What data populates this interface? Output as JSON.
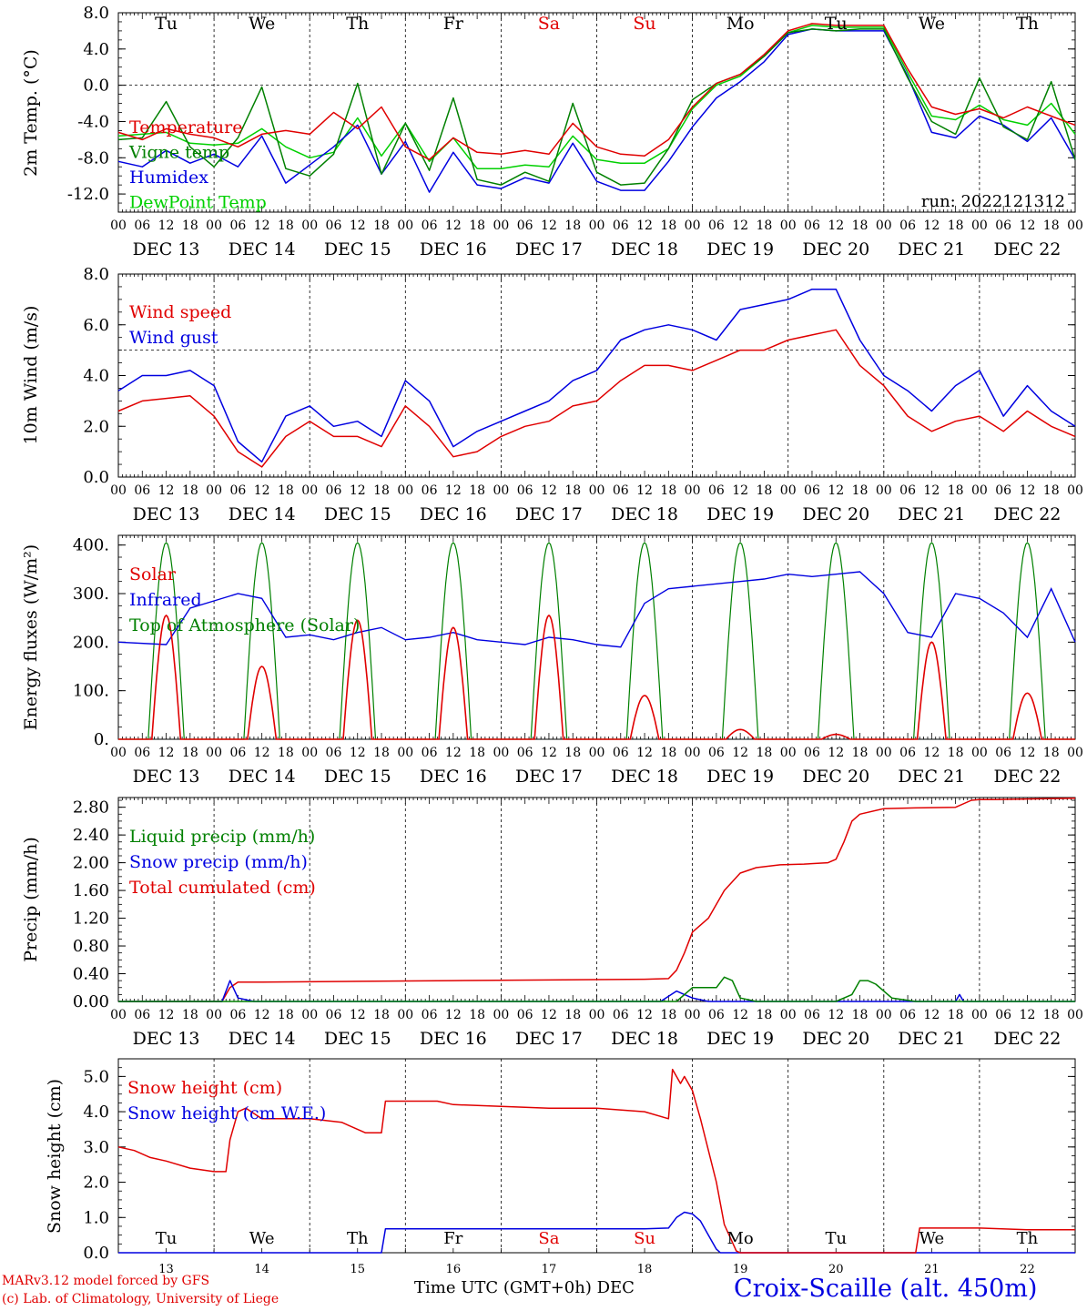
{
  "footer": {
    "model_line": "MARv3.12 model forced by GFS",
    "credit_line": "(c) Lab. of Climatology, University of Liege",
    "xlabel": "Time UTC (GMT+0h) DEC",
    "station": "Croix-Scaille (alt. 450m)",
    "day_numbers": [
      "13",
      "14",
      "15",
      "16",
      "17",
      "18",
      "19",
      "20",
      "21",
      "22"
    ]
  },
  "run_label": "run: 2022121312",
  "hour_ticks": [
    "00",
    "06",
    "12",
    "18"
  ],
  "hour_end": "00",
  "dates": [
    "DEC 13",
    "DEC 14",
    "DEC 15",
    "DEC 16",
    "DEC 17",
    "DEC 18",
    "DEC 19",
    "DEC 20",
    "DEC 21",
    "DEC 22"
  ],
  "weekdays": [
    {
      "label": "Tu",
      "color": "#000000"
    },
    {
      "label": "We",
      "color": "#000000"
    },
    {
      "label": "Th",
      "color": "#000000"
    },
    {
      "label": "Fr",
      "color": "#000000"
    },
    {
      "label": "Sa",
      "color": "#e00000"
    },
    {
      "label": "Su",
      "color": "#e00000"
    },
    {
      "label": "Mo",
      "color": "#000000"
    },
    {
      "label": "Tu",
      "color": "#000000"
    },
    {
      "label": "We",
      "color": "#000000"
    },
    {
      "label": "Th",
      "color": "#000000"
    }
  ],
  "colors": {
    "red": "#e00000",
    "green": "#008000",
    "blue": "#0000e0",
    "light_green": "#00d000"
  },
  "chart_data": [
    {
      "type": "line",
      "ylabel": "2m Temp. (°C)",
      "ylim": [
        -14,
        8
      ],
      "yticks": [
        8.0,
        4.0,
        0.0,
        -4.0,
        -8.0,
        -12.0
      ],
      "ytick_labels": [
        "8.0",
        "4.0",
        "0.0",
        "-4.0",
        "-8.0",
        "-12.0"
      ],
      "ref_line": 0,
      "x_unit": "hours since DEC 13 00 UTC",
      "x": [
        0,
        6,
        12,
        18,
        24,
        30,
        36,
        42,
        48,
        54,
        60,
        66,
        72,
        78,
        84,
        90,
        96,
        102,
        108,
        114,
        120,
        126,
        132,
        138,
        144,
        150,
        156,
        162,
        168,
        174,
        180,
        186,
        192,
        198,
        204,
        210,
        216,
        222,
        228,
        234,
        240
      ],
      "series": [
        {
          "name": "Temperature",
          "color": "#e00000",
          "values": [
            -5.2,
            -6.0,
            -4.8,
            -5.4,
            -5.8,
            -6.8,
            -5.4,
            -5.0,
            -5.4,
            -3.0,
            -4.8,
            -2.4,
            -6.8,
            -8.2,
            -5.8,
            -7.4,
            -7.6,
            -7.2,
            -7.6,
            -4.2,
            -6.8,
            -7.6,
            -7.8,
            -6.0,
            -2.4,
            0.2,
            1.2,
            3.4,
            6.0,
            6.8,
            6.6,
            6.6,
            6.6,
            1.8,
            -2.4,
            -3.2,
            -2.6,
            -3.6,
            -2.4,
            -3.4,
            -4.4
          ]
        },
        {
          "name": "Vigne temp",
          "color": "#008000",
          "values": [
            -6.0,
            -5.8,
            -1.8,
            -6.8,
            -9.0,
            -5.8,
            -0.2,
            -9.2,
            -10.0,
            -7.6,
            0.2,
            -9.8,
            -4.2,
            -9.4,
            -1.4,
            -10.4,
            -11.0,
            -9.6,
            -10.6,
            -2.0,
            -9.6,
            -11.0,
            -10.8,
            -7.0,
            -1.6,
            0.2,
            1.2,
            3.2,
            5.8,
            6.2,
            6.0,
            6.2,
            6.2,
            0.8,
            -4.0,
            -5.4,
            0.8,
            -4.6,
            -6.0,
            0.4,
            -8.2
          ]
        },
        {
          "name": "Humidex",
          "color": "#0000e0",
          "values": [
            -8.4,
            -9.0,
            -7.2,
            -8.6,
            -7.6,
            -9.0,
            -5.6,
            -10.8,
            -8.8,
            -6.8,
            -4.4,
            -9.8,
            -6.2,
            -11.8,
            -7.4,
            -11.0,
            -11.4,
            -10.2,
            -10.8,
            -6.4,
            -10.6,
            -11.6,
            -11.6,
            -8.4,
            -4.6,
            -1.4,
            0.4,
            2.6,
            5.6,
            6.2,
            6.0,
            6.0,
            6.0,
            1.0,
            -5.2,
            -5.8,
            -3.4,
            -4.4,
            -6.2,
            -3.6,
            -8.2
          ]
        },
        {
          "name": "DewPoint Temp",
          "color": "#00d000",
          "values": [
            -5.6,
            -5.4,
            -5.2,
            -6.4,
            -6.6,
            -6.4,
            -4.8,
            -6.8,
            -8.0,
            -7.4,
            -3.6,
            -7.8,
            -4.2,
            -8.4,
            -5.8,
            -9.2,
            -9.2,
            -8.8,
            -9.0,
            -5.6,
            -8.2,
            -8.6,
            -8.6,
            -7.0,
            -2.6,
            0.0,
            1.0,
            3.2,
            5.8,
            6.6,
            6.4,
            6.4,
            6.4,
            1.4,
            -3.4,
            -3.8,
            -2.2,
            -3.8,
            -4.4,
            -2.0,
            -5.4
          ]
        }
      ]
    },
    {
      "type": "line",
      "ylabel": "10m Wind (m/s)",
      "ylim": [
        0,
        8
      ],
      "yticks": [
        0.0,
        2.0,
        4.0,
        6.0,
        8.0
      ],
      "ytick_labels": [
        "0.0",
        "2.0",
        "4.0",
        "6.0",
        "8.0"
      ],
      "ref_line": 5.0,
      "x_unit": "hours since DEC 13 00 UTC",
      "x": [
        0,
        6,
        12,
        18,
        24,
        30,
        36,
        42,
        48,
        54,
        60,
        66,
        72,
        78,
        84,
        90,
        96,
        102,
        108,
        114,
        120,
        126,
        132,
        138,
        144,
        150,
        156,
        162,
        168,
        174,
        180,
        186,
        192,
        198,
        204,
        210,
        216,
        222,
        228,
        234,
        240
      ],
      "series": [
        {
          "name": "Wind speed",
          "color": "#e00000",
          "values": [
            2.6,
            3.0,
            3.1,
            3.2,
            2.4,
            1.0,
            0.4,
            1.6,
            2.2,
            1.6,
            1.6,
            1.2,
            2.8,
            2.0,
            0.8,
            1.0,
            1.6,
            2.0,
            2.2,
            2.8,
            3.0,
            3.8,
            4.4,
            4.4,
            4.2,
            4.6,
            5.0,
            5.0,
            5.4,
            5.6,
            5.8,
            4.4,
            3.6,
            2.4,
            1.8,
            2.2,
            2.4,
            1.8,
            2.6,
            2.0,
            1.6
          ]
        },
        {
          "name": "Wind gust",
          "color": "#0000e0",
          "values": [
            3.4,
            4.0,
            4.0,
            4.2,
            3.6,
            1.4,
            0.6,
            2.4,
            2.8,
            2.0,
            2.2,
            1.6,
            3.8,
            3.0,
            1.2,
            1.8,
            2.2,
            2.6,
            3.0,
            3.8,
            4.2,
            5.4,
            5.8,
            6.0,
            5.8,
            5.4,
            6.6,
            6.8,
            7.0,
            7.4,
            7.4,
            5.4,
            4.0,
            3.4,
            2.6,
            3.6,
            4.2,
            2.4,
            3.6,
            2.6,
            2.0
          ]
        }
      ]
    },
    {
      "type": "line",
      "ylabel": "Energy fluxes (W/m²)",
      "ylim": [
        0,
        420
      ],
      "yticks": [
        0,
        100,
        200,
        300,
        400
      ],
      "ytick_labels": [
        "0.",
        "100.",
        "200.",
        "300.",
        "400."
      ],
      "x_unit": "hours since DEC 13 00 UTC",
      "daily_peak_hour": 12,
      "day_half_width_hours": 4.5,
      "series": [
        {
          "name": "Solar",
          "color": "#e00000",
          "daily_peaks": [
            255,
            150,
            245,
            230,
            255,
            90,
            20,
            10,
            200,
            95
          ]
        },
        {
          "name": "Infrared",
          "color": "#0000e0",
          "x": [
            0,
            12,
            18,
            24,
            30,
            36,
            42,
            48,
            54,
            60,
            66,
            72,
            78,
            84,
            90,
            96,
            102,
            108,
            114,
            120,
            126,
            132,
            138,
            144,
            150,
            156,
            162,
            168,
            174,
            180,
            186,
            192,
            198,
            204,
            210,
            216,
            222,
            228,
            234,
            240
          ],
          "values": [
            200,
            195,
            270,
            285,
            300,
            290,
            210,
            215,
            205,
            220,
            230,
            205,
            210,
            220,
            205,
            200,
            195,
            210,
            205,
            195,
            190,
            280,
            310,
            315,
            320,
            325,
            330,
            340,
            335,
            340,
            345,
            300,
            220,
            210,
            300,
            290,
            260,
            210,
            310,
            200
          ]
        },
        {
          "name": "Top of Atmosphere (Solar)",
          "color": "#008000",
          "daily_peaks": [
            405,
            405,
            405,
            405,
            405,
            405,
            405,
            405,
            405,
            405
          ]
        }
      ]
    },
    {
      "type": "line",
      "ylabel": "Precip (mm/h)",
      "ylim": [
        0,
        2.94
      ],
      "yticks": [
        0.0,
        0.4,
        0.8,
        1.2,
        1.6,
        2.0,
        2.4,
        2.8
      ],
      "ytick_labels": [
        "0.00",
        "0.40",
        "0.80",
        "1.20",
        "1.60",
        "2.00",
        "2.40",
        "2.80"
      ],
      "x_unit": "hours since DEC 13 00 UTC",
      "series": [
        {
          "name": "Liquid precip (mm/h)",
          "color": "#008000",
          "x": [
            0,
            140,
            144,
            150,
            152,
            154,
            156,
            160,
            165,
            170,
            180,
            184,
            186,
            188,
            190,
            194,
            200,
            240
          ],
          "values": [
            0,
            0,
            0.2,
            0.2,
            0.35,
            0.3,
            0.05,
            0,
            0,
            0,
            0,
            0.1,
            0.3,
            0.3,
            0.25,
            0.05,
            0,
            0
          ]
        },
        {
          "name": "Snow precip (mm/h)",
          "color": "#0000e0",
          "x": [
            0,
            26,
            28,
            30,
            34,
            90,
            136,
            140,
            142,
            144,
            148,
            150,
            210,
            211,
            212,
            240
          ],
          "values": [
            0,
            0,
            0.3,
            0.05,
            0,
            0,
            0,
            0.15,
            0.1,
            0.05,
            0,
            0,
            0,
            0.1,
            0,
            0
          ]
        },
        {
          "name": "Total cumulated (cm)",
          "color": "#e00000",
          "x": [
            0,
            24,
            26,
            28,
            30,
            36,
            60,
            84,
            108,
            132,
            138,
            140,
            142,
            144,
            148,
            152,
            156,
            160,
            166,
            172,
            178,
            180,
            182,
            184,
            186,
            192,
            200,
            210,
            214,
            216,
            220,
            230,
            240
          ],
          "values": [
            0,
            0,
            0,
            0.2,
            0.28,
            0.28,
            0.29,
            0.3,
            0.31,
            0.32,
            0.33,
            0.45,
            0.7,
            1.0,
            1.2,
            1.6,
            1.85,
            1.93,
            1.97,
            1.98,
            2.0,
            2.05,
            2.3,
            2.6,
            2.7,
            2.78,
            2.79,
            2.8,
            2.9,
            2.91,
            2.91,
            2.92,
            2.93
          ]
        }
      ]
    },
    {
      "type": "line",
      "ylabel": "Snow height (cm)",
      "ylim": [
        0,
        5.5
      ],
      "yticks": [
        0.0,
        1.0,
        2.0,
        3.0,
        4.0,
        5.0
      ],
      "ytick_labels": [
        "0.0",
        "1.0",
        "2.0",
        "3.0",
        "4.0",
        "5.0"
      ],
      "x_unit": "hours since DEC 13 00 UTC",
      "series": [
        {
          "name": "Snow height (cm)",
          "color": "#e00000",
          "x": [
            0,
            4,
            8,
            12,
            18,
            24,
            27,
            28,
            30,
            32,
            36,
            48,
            56,
            62,
            66,
            67,
            72,
            80,
            84,
            96,
            108,
            120,
            132,
            138,
            139,
            141,
            142,
            144,
            146,
            150,
            152,
            155,
            156,
            168,
            180,
            192,
            200,
            201,
            204,
            216,
            228,
            240
          ],
          "values": [
            3.0,
            2.9,
            2.7,
            2.6,
            2.4,
            2.3,
            2.3,
            3.2,
            4.0,
            4.1,
            3.8,
            3.8,
            3.7,
            3.4,
            3.4,
            4.3,
            4.3,
            4.3,
            4.2,
            4.15,
            4.1,
            4.1,
            4.0,
            3.8,
            5.2,
            4.8,
            5.0,
            4.6,
            3.8,
            2.0,
            0.8,
            0.05,
            0,
            0,
            0,
            0,
            0,
            0.7,
            0.7,
            0.7,
            0.65,
            0.65
          ]
        },
        {
          "name": "Snow height (cm W.E.)",
          "color": "#0000e0",
          "x": [
            0,
            66,
            67,
            72,
            132,
            138,
            140,
            142,
            144,
            146,
            148,
            150,
            151,
            240
          ],
          "values": [
            0,
            0,
            0.68,
            0.68,
            0.68,
            0.7,
            1.0,
            1.15,
            1.1,
            0.9,
            0.5,
            0.1,
            0,
            0
          ]
        }
      ]
    }
  ]
}
